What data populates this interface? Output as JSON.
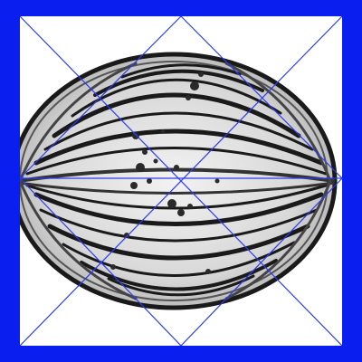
{
  "image": {
    "subject": "micrograph-pollen-grain",
    "colors": {
      "frame": "#0a1ef0",
      "overlay_lines": "#2a3cf0",
      "grain_dark": "#1a1a1a",
      "grain_mid": "#8a8a8a",
      "grain_light": "#e6e6e6",
      "background": "#ffffff"
    }
  }
}
